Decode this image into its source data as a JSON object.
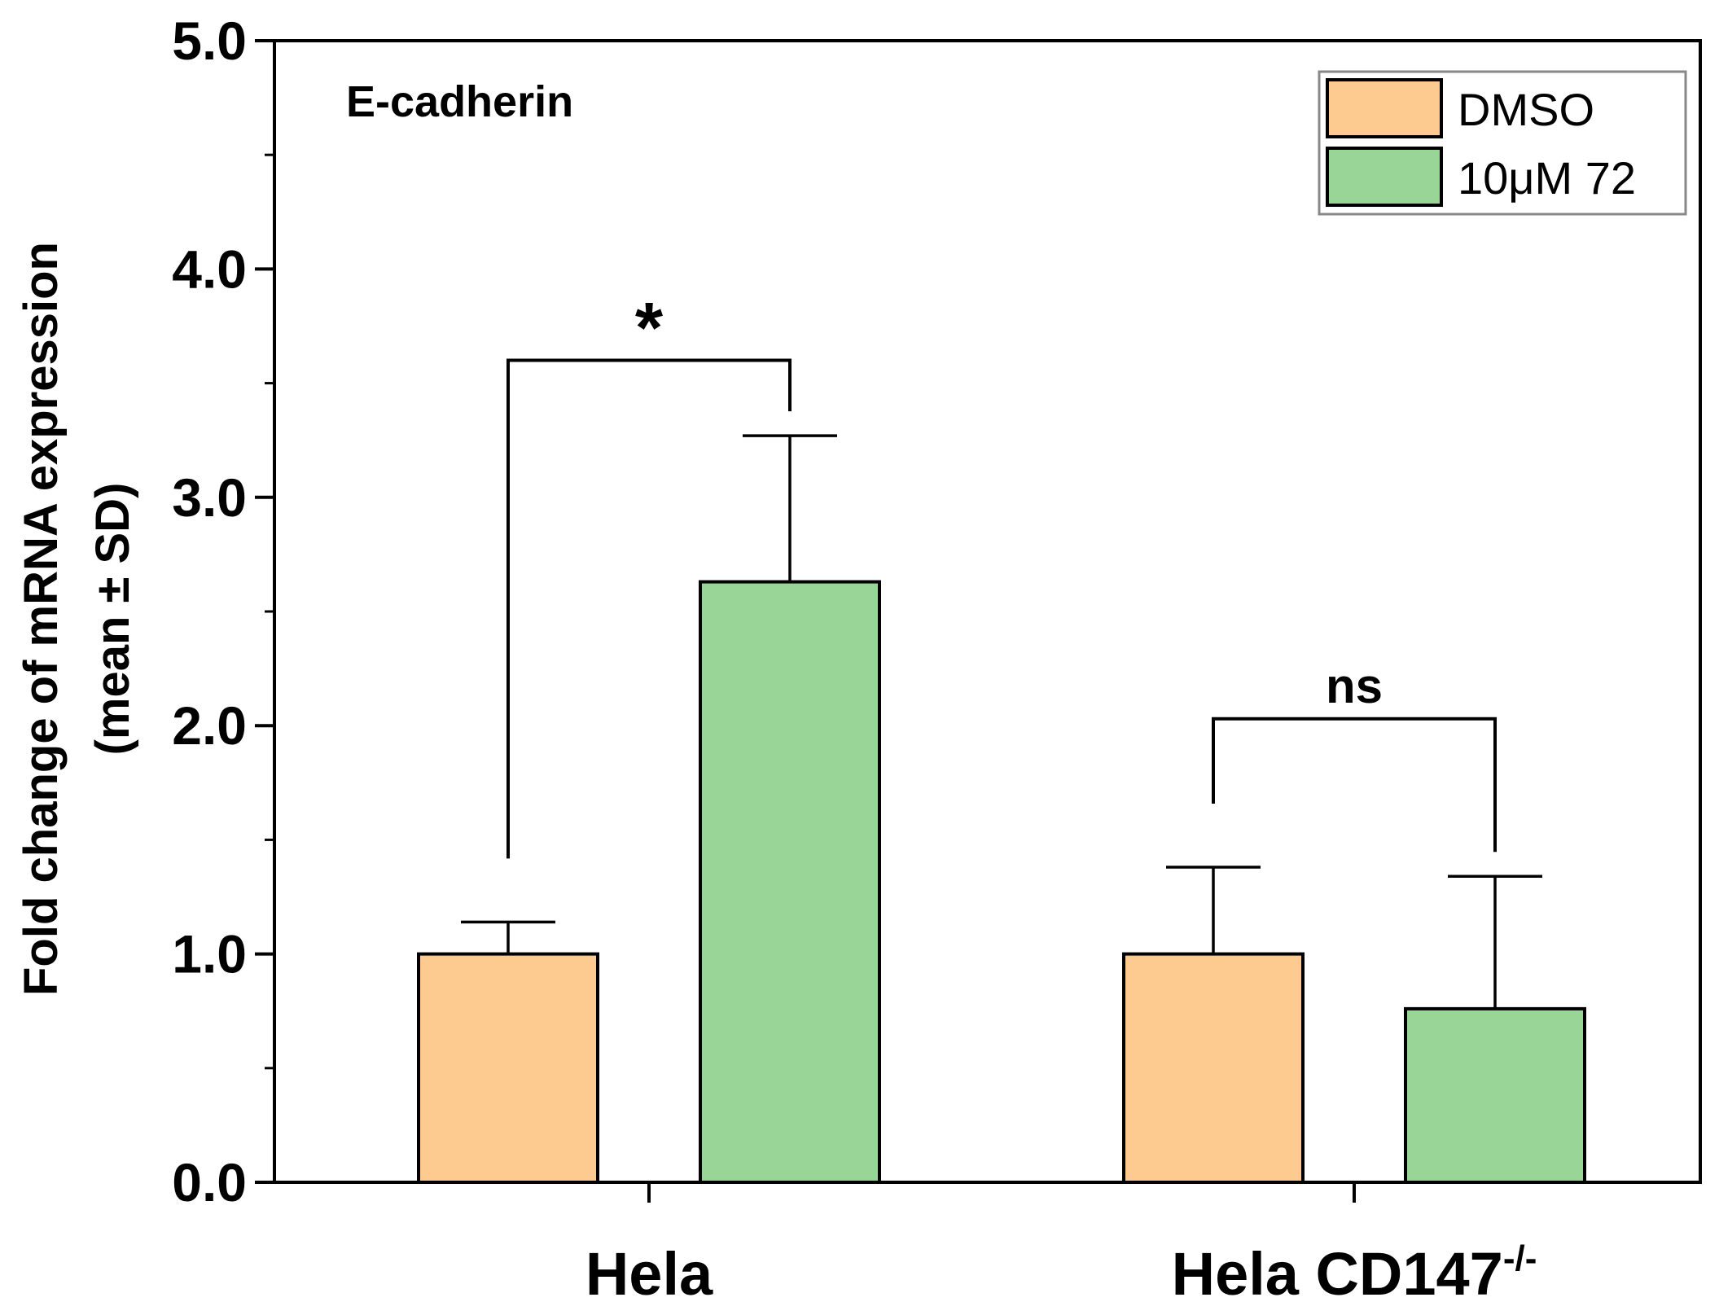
{
  "chart_data": {
    "type": "bar",
    "title": "E-cadherin",
    "ylabel_line1": "Fold change of mRNA expression",
    "ylabel_line2": "(mean ± SD)",
    "xlabel": "",
    "ylim": [
      0,
      5
    ],
    "yticks": [
      0,
      1,
      2,
      3,
      4,
      5
    ],
    "ytick_labels": [
      "0.0",
      "1.0",
      "2.0",
      "3.0",
      "4.0",
      "5.0"
    ],
    "categories": [
      {
        "label": "Hela",
        "sup": ""
      },
      {
        "label": "Hela CD147",
        "sup": "-/-"
      }
    ],
    "series": [
      {
        "name": "DMSO",
        "color": "#FDCB8F",
        "values": [
          1.0,
          1.0
        ],
        "sd": [
          0.14,
          0.38
        ]
      },
      {
        "name": "10μM 72",
        "color": "#98D597",
        "values": [
          2.63,
          0.76
        ],
        "sd": [
          0.64,
          0.58
        ]
      }
    ],
    "legend_position": "top-right",
    "significance": [
      {
        "category_index": 0,
        "label": "*",
        "y_bracket": 3.6
      },
      {
        "category_index": 1,
        "label": "ns",
        "y_bracket": 2.03
      }
    ]
  }
}
